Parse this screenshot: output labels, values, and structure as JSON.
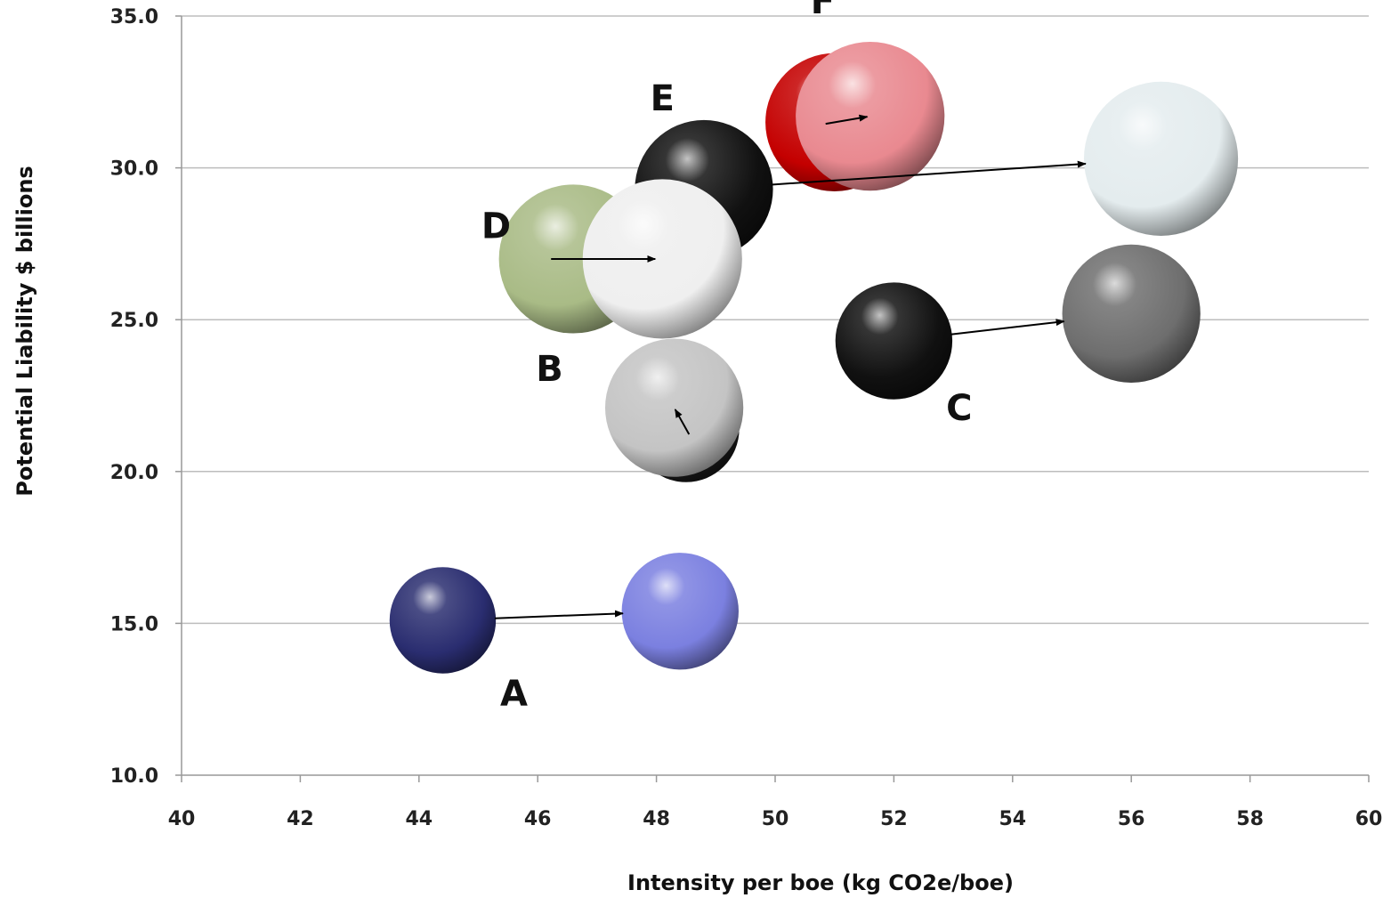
{
  "chart_data": {
    "type": "bubble",
    "title": "",
    "xlabel": "Intensity per boe (kg CO2e/boe)",
    "ylabel": "Potential Liability $ billions",
    "xlim": [
      40,
      60
    ],
    "ylim": [
      10,
      35
    ],
    "x_ticks": [
      "40",
      "42",
      "44",
      "46",
      "48",
      "50",
      "52",
      "54",
      "56",
      "58",
      "60"
    ],
    "y_ticks": [
      "10.0",
      "15.0",
      "20.0",
      "25.0",
      "30.0",
      "35.0"
    ],
    "grid": "horizontal",
    "legend": "none",
    "series": [
      {
        "label": "A",
        "from": {
          "x": 44.4,
          "y": 15.1,
          "size": 1.0,
          "color": "#2a2d70"
        },
        "to": {
          "x": 48.4,
          "y": 15.4,
          "size": 1.1,
          "color": "#7b80e0"
        }
      },
      {
        "label": "B",
        "from": {
          "x": 48.5,
          "y": 21.4,
          "size": 1.0,
          "color": "#1a1a1a"
        },
        "to": {
          "x": 48.3,
          "y": 22.1,
          "size": 1.3,
          "color": "#c4c4c4"
        }
      },
      {
        "label": "C",
        "from": {
          "x": 52.0,
          "y": 24.3,
          "size": 1.1,
          "color": "#111111"
        },
        "to": {
          "x": 56.0,
          "y": 25.2,
          "size": 1.3,
          "color": "#6e6e6e"
        }
      },
      {
        "label": "D",
        "from": {
          "x": 46.6,
          "y": 27.0,
          "size": 1.4,
          "color": "#a9bb86"
        },
        "to": {
          "x": 48.1,
          "y": 27.0,
          "size": 1.5,
          "color": "#efefef"
        }
      },
      {
        "label": "E",
        "from": {
          "x": 48.8,
          "y": 29.3,
          "size": 1.3,
          "color": "#111111"
        },
        "to": {
          "x": 56.5,
          "y": 30.3,
          "size": 1.45,
          "color": "#e4ecee"
        }
      },
      {
        "label": "F",
        "from": {
          "x": 51.0,
          "y": 31.5,
          "size": 1.3,
          "color": "#c40000"
        },
        "to": {
          "x": 51.6,
          "y": 31.7,
          "size": 1.4,
          "color": "#e98990"
        }
      }
    ]
  }
}
